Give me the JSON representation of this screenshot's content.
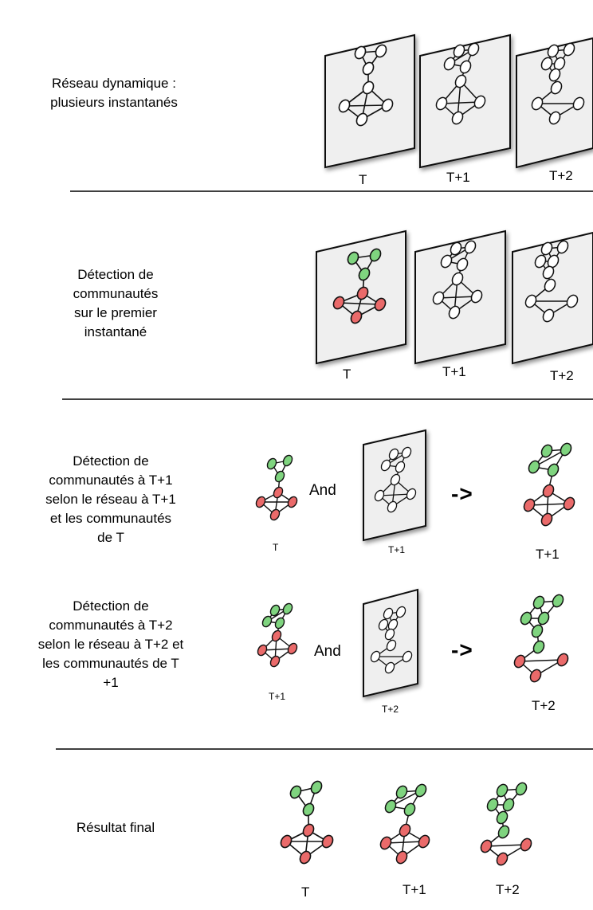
{
  "rows": {
    "dynamic_network": {
      "label": "Réseau dynamique :\nplusieurs instantanés",
      "ticks": [
        "T",
        "T+1",
        "T+2"
      ]
    },
    "first_detection": {
      "label": "Détection de\ncommunautés\nsur le premier\ninstantané",
      "ticks": [
        "T",
        "T+1",
        "T+2"
      ]
    },
    "detection_t1": {
      "label": "Détection de\ncommunautés à T+1\nselon le réseau à T+1\net les communautés\nde T",
      "input_tick": "T",
      "snapshot_tick": "T+1",
      "and_word": "And",
      "arrow": "->",
      "result_tick": "T+1"
    },
    "detection_t2": {
      "label": "Détection de\ncommunautés à T+2\nselon le réseau à T+2 et\nles communautés de T\n+1",
      "input_tick": "T+1",
      "snapshot_tick": "T+2",
      "and_word": "And",
      "arrow": "->",
      "result_tick": "T+2"
    },
    "final_result": {
      "label": "Résultat final",
      "ticks": [
        "T",
        "T+1",
        "T+2"
      ]
    }
  },
  "colors": {
    "community_green": "#7fd47f",
    "community_red": "#ea6a6a",
    "uncolored_node": "#ffffff",
    "snapshot_panel": "#efefef"
  }
}
